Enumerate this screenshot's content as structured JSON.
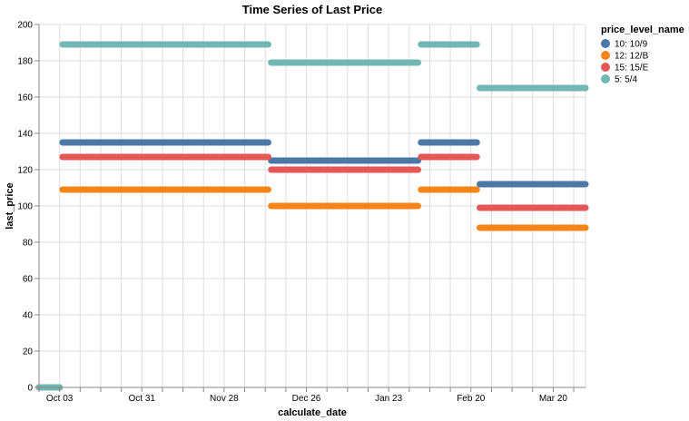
{
  "chart_data": {
    "type": "line",
    "title": "Time Series of Last Price",
    "xlabel": "calculate_date",
    "ylabel": "last_price",
    "x_ticks": [
      "Oct 03",
      "Oct 31",
      "Nov 28",
      "Dec 26",
      "Jan 23",
      "Feb 20",
      "Mar 20"
    ],
    "xlim": [
      "2022-09-26",
      "2023-03-31"
    ],
    "ylim": [
      0,
      200
    ],
    "y_ticks": [
      0,
      20,
      40,
      60,
      80,
      100,
      120,
      140,
      160,
      180,
      200
    ],
    "grid": true,
    "legend_title": "price_level_name",
    "legend_position": "right",
    "series": [
      {
        "name": "10: 10/9",
        "color": "#4c78a8",
        "segments": [
          {
            "start": "2022-09-26",
            "end": "2022-10-03",
            "value": 0
          },
          {
            "start": "2022-10-04",
            "end": "2022-12-13",
            "value": 135
          },
          {
            "start": "2022-12-14",
            "end": "2023-02-02",
            "value": 125
          },
          {
            "start": "2023-02-03",
            "end": "2023-02-22",
            "value": 135
          },
          {
            "start": "2023-02-23",
            "end": "2023-03-31",
            "value": 112
          }
        ]
      },
      {
        "name": "12: 12/B",
        "color": "#f58518",
        "segments": [
          {
            "start": "2022-09-26",
            "end": "2022-10-03",
            "value": 0
          },
          {
            "start": "2022-10-04",
            "end": "2022-12-13",
            "value": 109
          },
          {
            "start": "2022-12-14",
            "end": "2023-02-02",
            "value": 100
          },
          {
            "start": "2023-02-03",
            "end": "2023-02-22",
            "value": 109
          },
          {
            "start": "2023-02-23",
            "end": "2023-03-31",
            "value": 88
          }
        ]
      },
      {
        "name": "15: 15/E",
        "color": "#e45756",
        "segments": [
          {
            "start": "2022-09-26",
            "end": "2022-10-03",
            "value": 0
          },
          {
            "start": "2022-10-04",
            "end": "2022-12-13",
            "value": 127
          },
          {
            "start": "2022-12-14",
            "end": "2023-02-02",
            "value": 120
          },
          {
            "start": "2023-02-03",
            "end": "2023-02-22",
            "value": 127
          },
          {
            "start": "2023-02-23",
            "end": "2023-03-31",
            "value": 99
          }
        ]
      },
      {
        "name": "5: 5/4",
        "color": "#72b7b2",
        "segments": [
          {
            "start": "2022-09-26",
            "end": "2022-10-03",
            "value": 0
          },
          {
            "start": "2022-10-04",
            "end": "2022-12-13",
            "value": 189
          },
          {
            "start": "2022-12-14",
            "end": "2023-02-02",
            "value": 179
          },
          {
            "start": "2023-02-03",
            "end": "2023-02-22",
            "value": 189
          },
          {
            "start": "2023-02-23",
            "end": "2023-03-31",
            "value": 165
          }
        ]
      }
    ]
  }
}
